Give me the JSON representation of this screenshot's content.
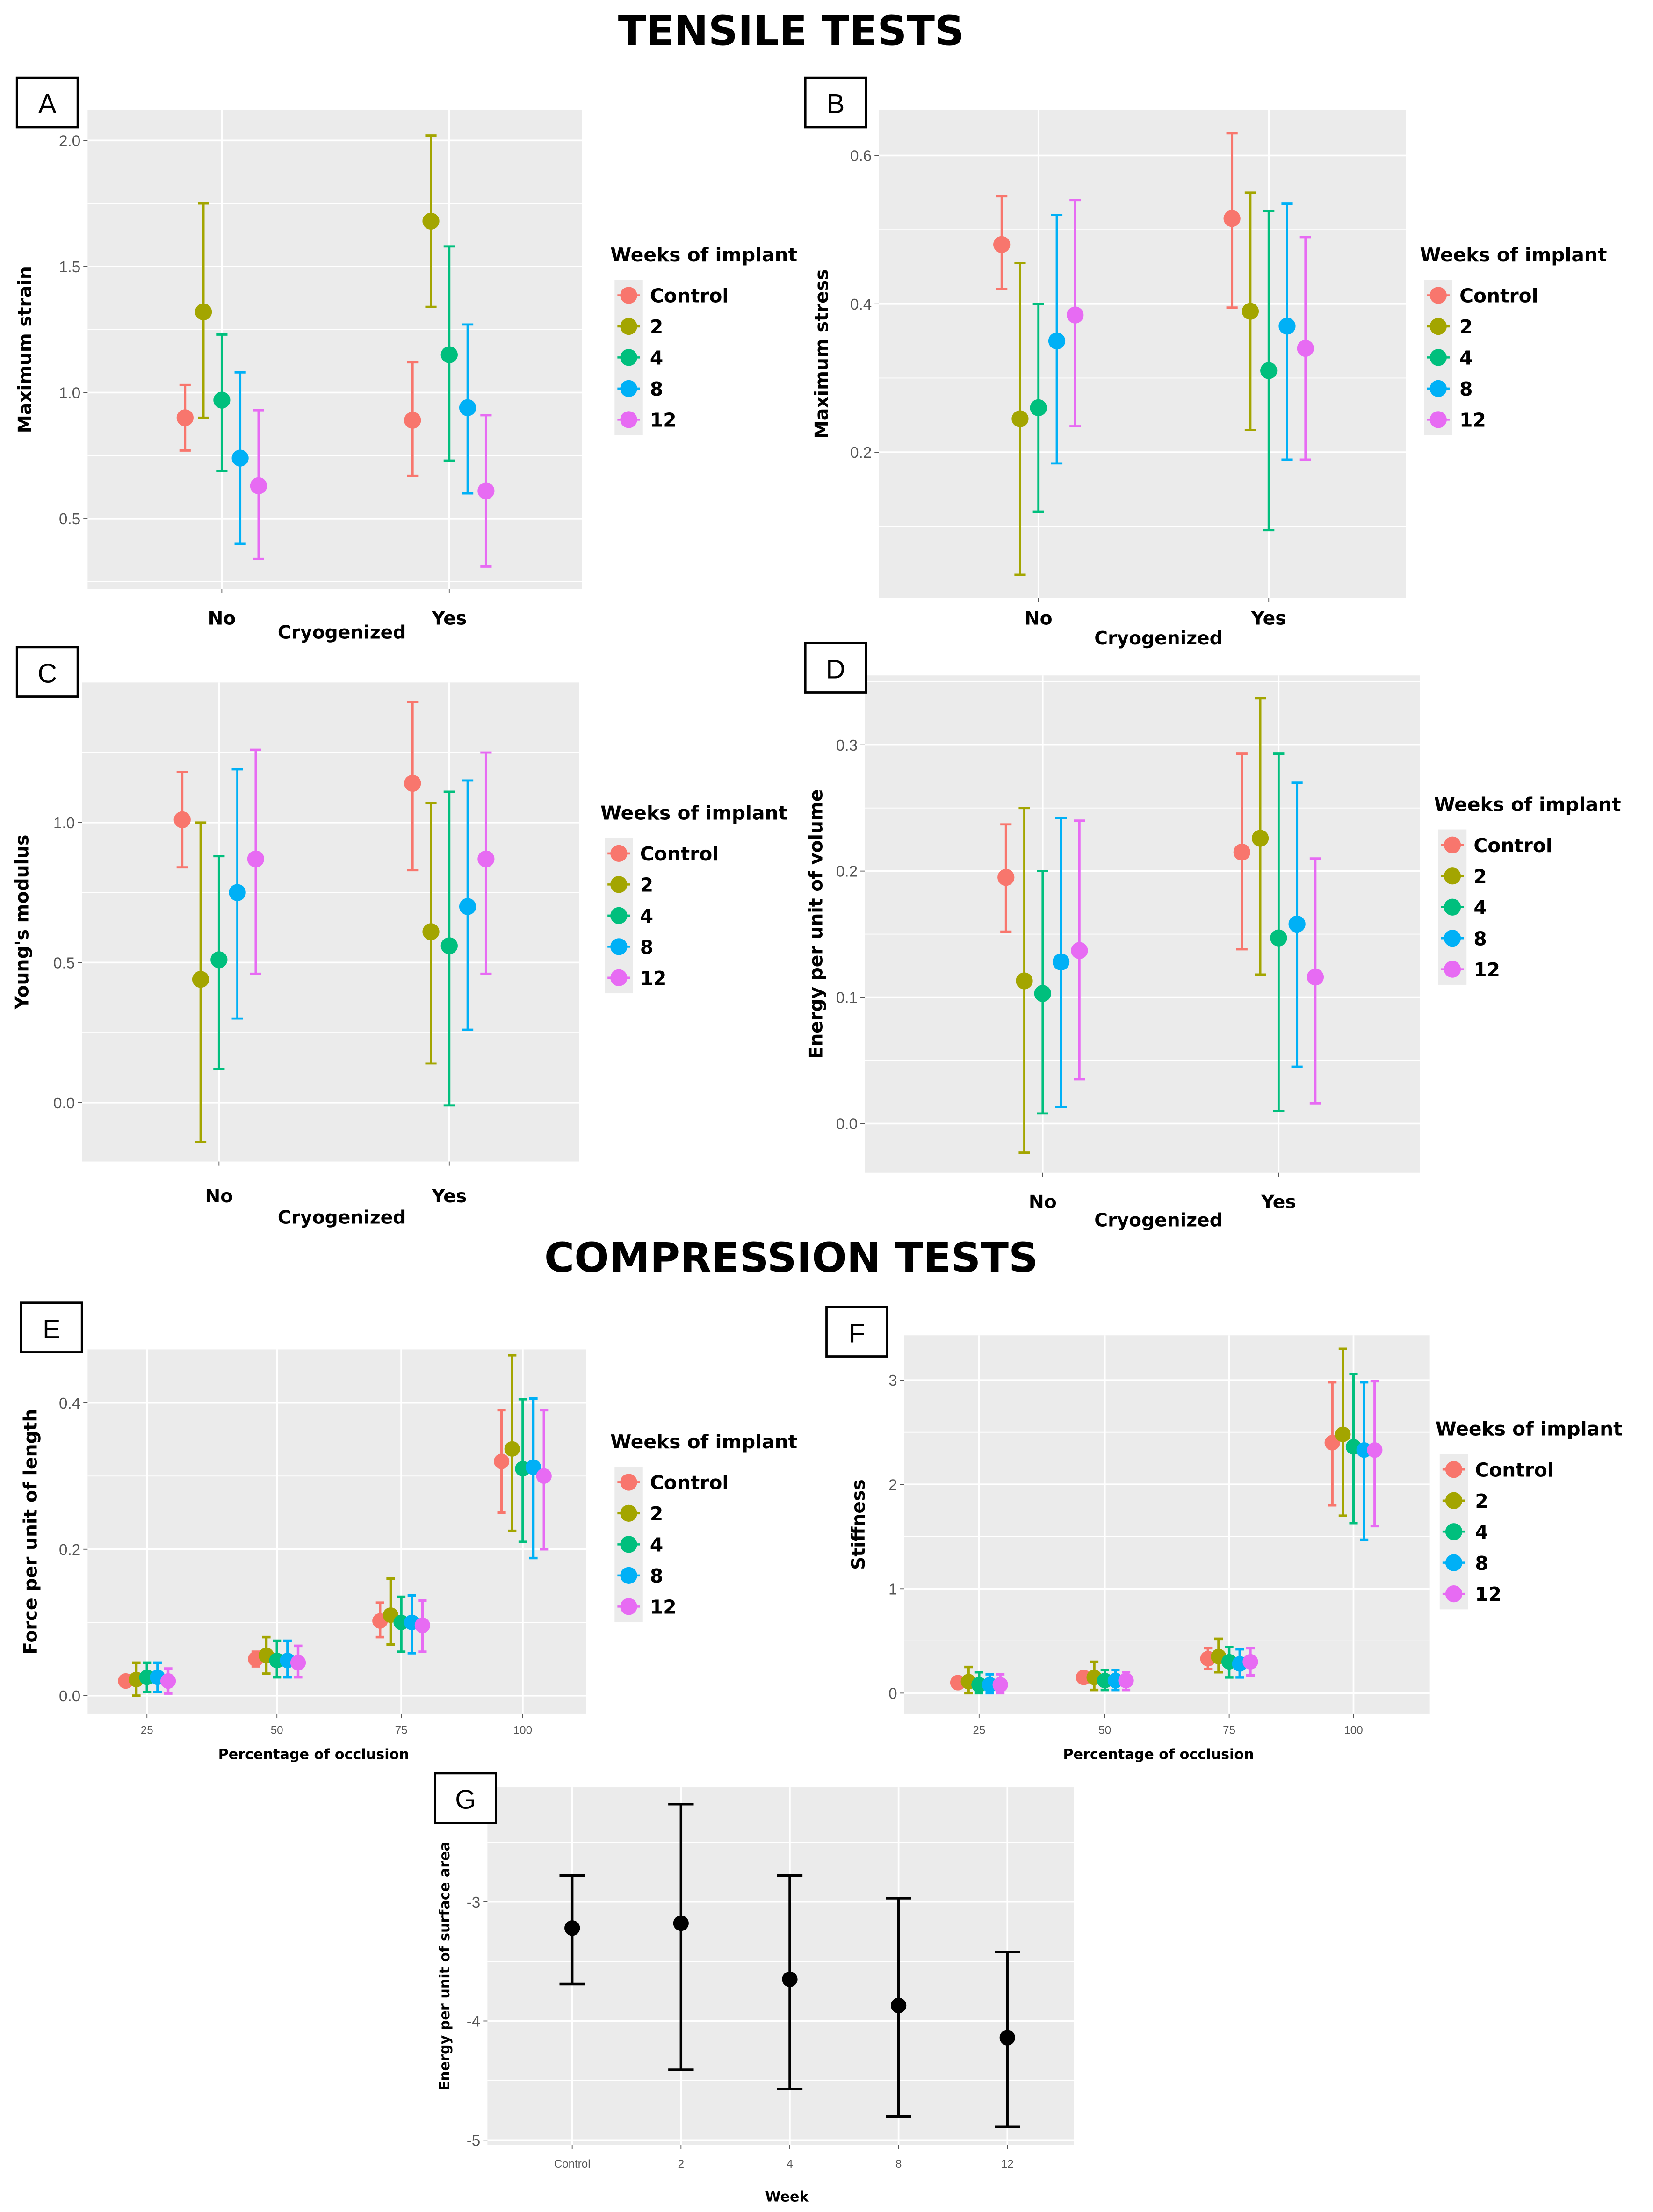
{
  "headings": {
    "tensile": "TENSILE TESTS",
    "compression": "COMPRESSION TESTS"
  },
  "colors": {
    "Control": "#F8766D",
    "2": "#A3A500",
    "4": "#00BF7D",
    "8": "#00B0F6",
    "12": "#E76BF3",
    "G": "#000000",
    "panel_bg": "#EBEBEB"
  },
  "chart_data": [
    {
      "id": "A",
      "type": "scatter",
      "errorbars": true,
      "xlabel": "Cryogenized",
      "ylabel": "Maximum strain",
      "categories": [
        "No",
        "Yes"
      ],
      "ylim": [
        0.22,
        2.12
      ],
      "yticks": [
        0.5,
        1.0,
        1.5,
        2.0
      ],
      "ytick_labels": [
        "0.5",
        "1.0",
        "1.5",
        "2.0"
      ],
      "legend_title": "Weeks of implant",
      "legend_position": "right",
      "grid": true,
      "series": [
        {
          "name": "Control",
          "values": [
            0.9,
            0.89
          ],
          "lower": [
            0.77,
            0.67
          ],
          "upper": [
            1.03,
            1.12
          ]
        },
        {
          "name": "2",
          "values": [
            1.32,
            1.68
          ],
          "lower": [
            0.9,
            1.34
          ],
          "upper": [
            1.75,
            2.02
          ]
        },
        {
          "name": "4",
          "values": [
            0.97,
            1.15
          ],
          "lower": [
            0.69,
            0.73
          ],
          "upper": [
            1.23,
            1.58
          ]
        },
        {
          "name": "8",
          "values": [
            0.74,
            0.94
          ],
          "lower": [
            0.4,
            0.6
          ],
          "upper": [
            1.08,
            1.27
          ]
        },
        {
          "name": "12",
          "values": [
            0.63,
            0.61
          ],
          "lower": [
            0.34,
            0.31
          ],
          "upper": [
            0.93,
            0.91
          ]
        }
      ]
    },
    {
      "id": "B",
      "type": "scatter",
      "errorbars": true,
      "xlabel": "Cryogenized",
      "ylabel": "Maximum stress",
      "categories": [
        "No",
        "Yes"
      ],
      "ylim": [
        0.004,
        0.661
      ],
      "yticks": [
        0.2,
        0.4,
        0.6
      ],
      "ytick_labels": [
        "0.2",
        "0.4",
        "0.6"
      ],
      "legend_title": "Weeks of implant",
      "legend_position": "right",
      "grid": true,
      "series": [
        {
          "name": "Control",
          "values": [
            0.48,
            0.515
          ],
          "lower": [
            0.42,
            0.395
          ],
          "upper": [
            0.545,
            0.63
          ]
        },
        {
          "name": "2",
          "values": [
            0.245,
            0.39
          ],
          "lower": [
            0.035,
            0.23
          ],
          "upper": [
            0.455,
            0.55
          ]
        },
        {
          "name": "4",
          "values": [
            0.26,
            0.31
          ],
          "lower": [
            0.12,
            0.095
          ],
          "upper": [
            0.4,
            0.525
          ]
        },
        {
          "name": "8",
          "values": [
            0.35,
            0.37
          ],
          "lower": [
            0.185,
            0.19
          ],
          "upper": [
            0.52,
            0.535
          ]
        },
        {
          "name": "12",
          "values": [
            0.385,
            0.34
          ],
          "lower": [
            0.235,
            0.19
          ],
          "upper": [
            0.54,
            0.49
          ]
        }
      ]
    },
    {
      "id": "C",
      "type": "scatter",
      "errorbars": true,
      "xlabel": "Cryogenized",
      "ylabel": "Young's modulus",
      "categories": [
        "No",
        "Yes"
      ],
      "ylim": [
        -0.21,
        1.5
      ],
      "yticks": [
        0.0,
        0.5,
        1.0
      ],
      "ytick_labels": [
        "0.0",
        "0.5",
        "1.0"
      ],
      "legend_title": "Weeks of implant",
      "legend_position": "right",
      "grid": true,
      "series": [
        {
          "name": "Control",
          "values": [
            1.01,
            1.14
          ],
          "lower": [
            0.84,
            0.83
          ],
          "upper": [
            1.18,
            1.43
          ]
        },
        {
          "name": "2",
          "values": [
            0.44,
            0.61
          ],
          "lower": [
            -0.14,
            0.14
          ],
          "upper": [
            1.0,
            1.07
          ]
        },
        {
          "name": "4",
          "values": [
            0.51,
            0.56
          ],
          "lower": [
            0.12,
            -0.01
          ],
          "upper": [
            0.88,
            1.11
          ]
        },
        {
          "name": "8",
          "values": [
            0.75,
            0.7
          ],
          "lower": [
            0.3,
            0.26
          ],
          "upper": [
            1.19,
            1.15
          ]
        },
        {
          "name": "12",
          "values": [
            0.87,
            0.87
          ],
          "lower": [
            0.46,
            0.46
          ],
          "upper": [
            1.26,
            1.25
          ]
        }
      ]
    },
    {
      "id": "D",
      "type": "scatter",
      "errorbars": true,
      "xlabel": "Cryogenized",
      "ylabel": "Energy per unit of volume",
      "categories": [
        "No",
        "Yes"
      ],
      "ylim": [
        -0.039,
        0.355
      ],
      "yticks": [
        0.0,
        0.1,
        0.2,
        0.3
      ],
      "ytick_labels": [
        "0.0",
        "0.1",
        "0.2",
        "0.3"
      ],
      "legend_title": "Weeks of implant",
      "legend_position": "right",
      "grid": true,
      "series": [
        {
          "name": "Control",
          "values": [
            0.195,
            0.215
          ],
          "lower": [
            0.152,
            0.138
          ],
          "upper": [
            0.237,
            0.293
          ]
        },
        {
          "name": "2",
          "values": [
            0.113,
            0.226
          ],
          "lower": [
            -0.023,
            0.118
          ],
          "upper": [
            0.25,
            0.337
          ]
        },
        {
          "name": "4",
          "values": [
            0.103,
            0.147
          ],
          "lower": [
            0.008,
            0.01
          ],
          "upper": [
            0.2,
            0.293
          ]
        },
        {
          "name": "8",
          "values": [
            0.128,
            0.158
          ],
          "lower": [
            0.013,
            0.045
          ],
          "upper": [
            0.242,
            0.27
          ]
        },
        {
          "name": "12",
          "values": [
            0.137,
            0.116
          ],
          "lower": [
            0.035,
            0.016
          ],
          "upper": [
            0.24,
            0.21
          ]
        }
      ]
    },
    {
      "id": "E",
      "type": "scatter",
      "errorbars": true,
      "xlabel": "Percentage of occlusion",
      "ylabel": "Force per unit of length",
      "categories": [
        "25",
        "50",
        "75",
        "100"
      ],
      "ylim": [
        -0.025,
        0.473
      ],
      "yticks": [
        0.0,
        0.2,
        0.4
      ],
      "ytick_labels": [
        "0.0",
        "0.2",
        "0.4"
      ],
      "legend_title": "Weeks of implant",
      "legend_position": "right",
      "grid": true,
      "series": [
        {
          "name": "Control",
          "values": [
            0.02,
            0.05,
            0.102,
            0.32
          ],
          "lower": [
            0.016,
            0.04,
            0.08,
            0.25
          ],
          "upper": [
            0.024,
            0.06,
            0.127,
            0.39
          ]
        },
        {
          "name": "2",
          "values": [
            0.022,
            0.055,
            0.11,
            0.337
          ],
          "lower": [
            0.0,
            0.03,
            0.07,
            0.225
          ],
          "upper": [
            0.045,
            0.08,
            0.16,
            0.465
          ]
        },
        {
          "name": "4",
          "values": [
            0.025,
            0.048,
            0.1,
            0.31
          ],
          "lower": [
            0.005,
            0.025,
            0.06,
            0.21
          ],
          "upper": [
            0.045,
            0.075,
            0.135,
            0.405
          ]
        },
        {
          "name": "8",
          "values": [
            0.025,
            0.048,
            0.1,
            0.312
          ],
          "lower": [
            0.005,
            0.025,
            0.058,
            0.188
          ],
          "upper": [
            0.045,
            0.075,
            0.137,
            0.406
          ]
        },
        {
          "name": "12",
          "values": [
            0.02,
            0.045,
            0.096,
            0.3
          ],
          "lower": [
            0.003,
            0.025,
            0.06,
            0.2
          ],
          "upper": [
            0.037,
            0.068,
            0.13,
            0.39
          ]
        }
      ]
    },
    {
      "id": "F",
      "type": "scatter",
      "errorbars": true,
      "xlabel": "Percentage of occlusion",
      "ylabel": "Stiffness",
      "categories": [
        "25",
        "50",
        "75",
        "100"
      ],
      "ylim": [
        -0.2,
        3.43
      ],
      "yticks": [
        0,
        1,
        2,
        3
      ],
      "ytick_labels": [
        "0",
        "1",
        "2",
        "3"
      ],
      "legend_title": "Weeks of implant",
      "legend_position": "right",
      "grid": true,
      "series": [
        {
          "name": "Control",
          "values": [
            0.1,
            0.15,
            0.33,
            2.4
          ],
          "lower": [
            0.08,
            0.12,
            0.23,
            1.8
          ],
          "upper": [
            0.12,
            0.18,
            0.43,
            2.98
          ]
        },
        {
          "name": "2",
          "values": [
            0.11,
            0.15,
            0.35,
            2.48
          ],
          "lower": [
            0.0,
            0.03,
            0.2,
            1.7
          ],
          "upper": [
            0.25,
            0.3,
            0.52,
            3.3
          ]
        },
        {
          "name": "4",
          "values": [
            0.08,
            0.12,
            0.3,
            2.36
          ],
          "lower": [
            0.0,
            0.03,
            0.15,
            1.63
          ],
          "upper": [
            0.2,
            0.22,
            0.44,
            3.06
          ]
        },
        {
          "name": "8",
          "values": [
            0.08,
            0.12,
            0.28,
            2.33
          ],
          "lower": [
            0.0,
            0.03,
            0.15,
            1.47
          ],
          "upper": [
            0.18,
            0.22,
            0.42,
            2.98
          ]
        },
        {
          "name": "12",
          "values": [
            0.08,
            0.12,
            0.3,
            2.33
          ],
          "lower": [
            0.0,
            0.03,
            0.17,
            1.6
          ],
          "upper": [
            0.18,
            0.2,
            0.43,
            2.99
          ]
        }
      ]
    },
    {
      "id": "G",
      "type": "scatter",
      "errorbars": true,
      "xlabel": "Week",
      "ylabel": "Energy per unit of surface area",
      "categories": [
        "Control",
        "2",
        "4",
        "8",
        "12"
      ],
      "ylim": [
        -5.04,
        -2.04
      ],
      "yticks": [
        -5,
        -4,
        -3
      ],
      "ytick_labels": [
        "-5",
        "-4",
        "-3"
      ],
      "grid": true,
      "series": [
        {
          "name": "G",
          "values": [
            -3.22,
            -3.18,
            -3.65,
            -3.87,
            -4.14
          ],
          "lower": [
            -3.69,
            -4.41,
            -4.57,
            -4.8,
            -4.89
          ],
          "upper": [
            -2.78,
            -2.18,
            -2.78,
            -2.97,
            -3.42
          ]
        }
      ]
    }
  ]
}
